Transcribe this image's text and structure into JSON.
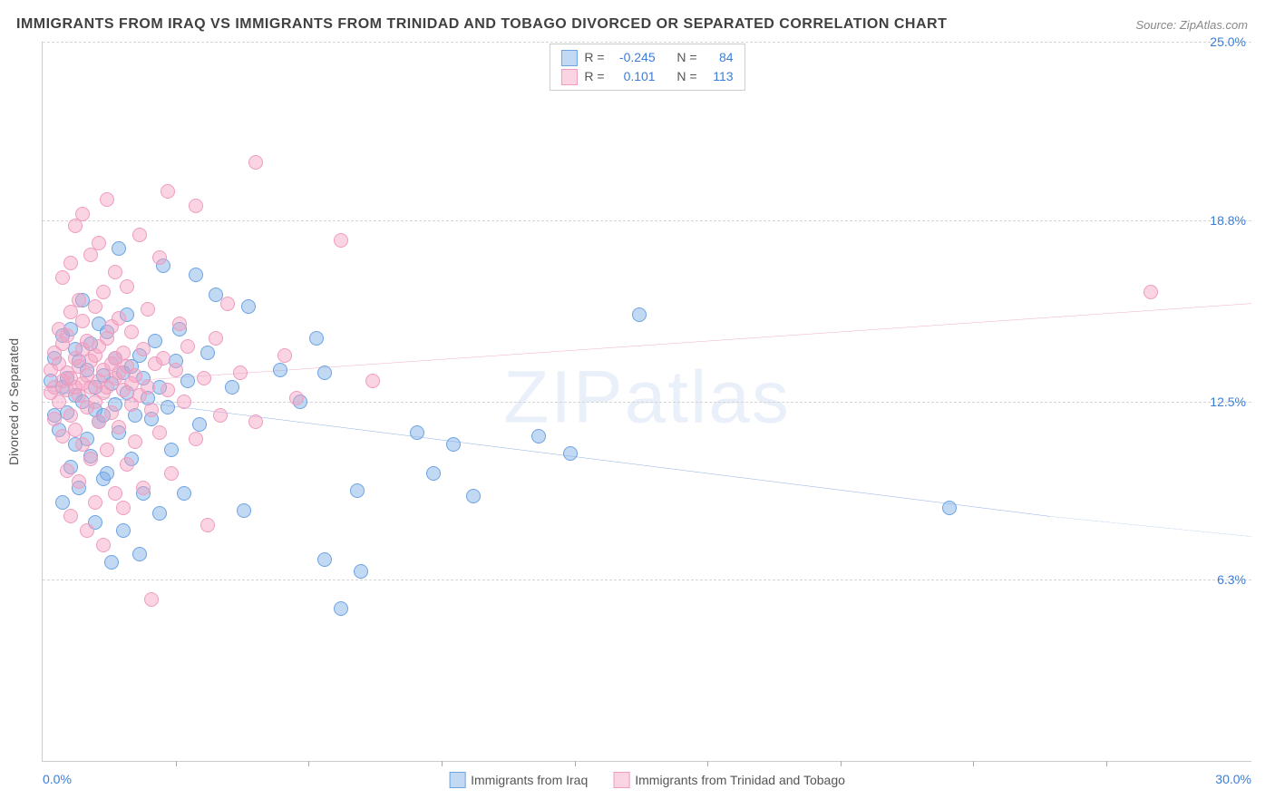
{
  "title": "IMMIGRANTS FROM IRAQ VS IMMIGRANTS FROM TRINIDAD AND TOBAGO DIVORCED OR SEPARATED CORRELATION CHART",
  "source": "Source: ZipAtlas.com",
  "watermark": "ZIPatlas",
  "chart": {
    "type": "scatter",
    "xlim": [
      0,
      30
    ],
    "ylim": [
      0,
      25
    ],
    "x_min_label": "0.0%",
    "x_max_label": "30.0%",
    "y_ticks": [
      {
        "v": 6.3,
        "label": "6.3%"
      },
      {
        "v": 12.5,
        "label": "12.5%"
      },
      {
        "v": 18.8,
        "label": "18.8%"
      },
      {
        "v": 25.0,
        "label": "25.0%"
      }
    ],
    "x_tick_positions": [
      3.3,
      6.6,
      9.9,
      13.2,
      16.5,
      19.8,
      23.1,
      26.4
    ],
    "y_axis_label": "Divorced or Separated",
    "grid_color": "#d5d5d5",
    "background_color": "#ffffff",
    "axis_label_color": "#3b7dd8",
    "marker_radius": 8,
    "series": [
      {
        "name": "Immigrants from Iraq",
        "fill": "rgba(120,170,230,0.45)",
        "stroke": "#6da3e0",
        "line_color": "#2f6fd0",
        "R": "-0.245",
        "N": "84",
        "trend": {
          "x1": 0,
          "y1": 12.9,
          "x2": 25.0,
          "y2": 8.5,
          "dash_to_x": 30.0,
          "dash_to_y": 7.8
        },
        "points": [
          [
            0.2,
            13.2
          ],
          [
            0.3,
            12.0
          ],
          [
            0.3,
            14.0
          ],
          [
            0.4,
            11.5
          ],
          [
            0.5,
            13.0
          ],
          [
            0.5,
            14.8
          ],
          [
            0.5,
            9.0
          ],
          [
            0.6,
            13.3
          ],
          [
            0.6,
            12.1
          ],
          [
            0.7,
            10.2
          ],
          [
            0.7,
            15.0
          ],
          [
            0.8,
            12.7
          ],
          [
            0.8,
            11.0
          ],
          [
            0.8,
            14.3
          ],
          [
            0.9,
            13.9
          ],
          [
            0.9,
            9.5
          ],
          [
            1.0,
            12.5
          ],
          [
            1.0,
            16.0
          ],
          [
            1.1,
            11.2
          ],
          [
            1.1,
            13.6
          ],
          [
            1.2,
            14.5
          ],
          [
            1.2,
            10.6
          ],
          [
            1.3,
            12.2
          ],
          [
            1.3,
            13.0
          ],
          [
            1.3,
            8.3
          ],
          [
            1.4,
            15.2
          ],
          [
            1.4,
            11.8
          ],
          [
            1.5,
            13.4
          ],
          [
            1.5,
            9.8
          ],
          [
            1.5,
            12.0
          ],
          [
            1.6,
            14.9
          ],
          [
            1.6,
            10.0
          ],
          [
            1.7,
            6.9
          ],
          [
            1.7,
            13.1
          ],
          [
            1.8,
            12.4
          ],
          [
            1.8,
            14.0
          ],
          [
            1.9,
            11.4
          ],
          [
            1.9,
            17.8
          ],
          [
            2.0,
            13.5
          ],
          [
            2.0,
            8.0
          ],
          [
            2.1,
            12.8
          ],
          [
            2.1,
            15.5
          ],
          [
            2.2,
            10.5
          ],
          [
            2.2,
            13.7
          ],
          [
            2.3,
            12.0
          ],
          [
            2.4,
            14.1
          ],
          [
            2.4,
            7.2
          ],
          [
            2.5,
            13.3
          ],
          [
            2.5,
            9.3
          ],
          [
            2.6,
            12.6
          ],
          [
            2.7,
            11.9
          ],
          [
            2.8,
            14.6
          ],
          [
            2.9,
            8.6
          ],
          [
            2.9,
            13.0
          ],
          [
            3.0,
            17.2
          ],
          [
            3.1,
            12.3
          ],
          [
            3.2,
            10.8
          ],
          [
            3.3,
            13.9
          ],
          [
            3.4,
            15.0
          ],
          [
            3.5,
            9.3
          ],
          [
            3.6,
            13.2
          ],
          [
            3.8,
            16.9
          ],
          [
            3.9,
            11.7
          ],
          [
            4.1,
            14.2
          ],
          [
            4.3,
            16.2
          ],
          [
            4.7,
            13.0
          ],
          [
            5.0,
            8.7
          ],
          [
            5.1,
            15.8
          ],
          [
            5.9,
            13.6
          ],
          [
            6.4,
            12.5
          ],
          [
            6.8,
            14.7
          ],
          [
            7.0,
            7.0
          ],
          [
            7.0,
            13.5
          ],
          [
            7.4,
            5.3
          ],
          [
            7.8,
            9.4
          ],
          [
            7.9,
            6.6
          ],
          [
            9.3,
            11.4
          ],
          [
            9.7,
            10.0
          ],
          [
            10.2,
            11.0
          ],
          [
            10.7,
            9.2
          ],
          [
            12.3,
            11.3
          ],
          [
            13.1,
            10.7
          ],
          [
            14.8,
            15.5
          ],
          [
            22.5,
            8.8
          ]
        ]
      },
      {
        "name": "Immigrants from Trinidad and Tobago",
        "fill": "rgba(245,160,190,0.45)",
        "stroke": "#ef9cc0",
        "line_color": "#e86aa0",
        "R": "0.101",
        "N": "113",
        "trend": {
          "x1": 0,
          "y1": 13.0,
          "x2": 30.0,
          "y2": 15.9
        },
        "points": [
          [
            0.2,
            12.8
          ],
          [
            0.2,
            13.6
          ],
          [
            0.3,
            13.0
          ],
          [
            0.3,
            11.9
          ],
          [
            0.3,
            14.2
          ],
          [
            0.4,
            12.5
          ],
          [
            0.4,
            13.8
          ],
          [
            0.4,
            15.0
          ],
          [
            0.5,
            11.3
          ],
          [
            0.5,
            13.2
          ],
          [
            0.5,
            14.5
          ],
          [
            0.5,
            16.8
          ],
          [
            0.6,
            10.1
          ],
          [
            0.6,
            12.9
          ],
          [
            0.6,
            13.5
          ],
          [
            0.6,
            14.8
          ],
          [
            0.7,
            8.5
          ],
          [
            0.7,
            12.0
          ],
          [
            0.7,
            13.3
          ],
          [
            0.7,
            15.6
          ],
          [
            0.7,
            17.3
          ],
          [
            0.8,
            11.5
          ],
          [
            0.8,
            13.0
          ],
          [
            0.8,
            14.0
          ],
          [
            0.8,
            18.6
          ],
          [
            0.9,
            9.7
          ],
          [
            0.9,
            12.7
          ],
          [
            0.9,
            13.7
          ],
          [
            0.9,
            16.0
          ],
          [
            1.0,
            11.0
          ],
          [
            1.0,
            13.1
          ],
          [
            1.0,
            14.3
          ],
          [
            1.0,
            15.3
          ],
          [
            1.0,
            19.0
          ],
          [
            1.1,
            8.0
          ],
          [
            1.1,
            12.3
          ],
          [
            1.1,
            13.4
          ],
          [
            1.1,
            14.6
          ],
          [
            1.2,
            10.5
          ],
          [
            1.2,
            13.0
          ],
          [
            1.2,
            13.9
          ],
          [
            1.2,
            17.6
          ],
          [
            1.3,
            9.0
          ],
          [
            1.3,
            12.5
          ],
          [
            1.3,
            14.1
          ],
          [
            1.3,
            15.8
          ],
          [
            1.4,
            11.8
          ],
          [
            1.4,
            13.2
          ],
          [
            1.4,
            14.4
          ],
          [
            1.4,
            18.0
          ],
          [
            1.5,
            7.5
          ],
          [
            1.5,
            12.8
          ],
          [
            1.5,
            13.6
          ],
          [
            1.5,
            16.3
          ],
          [
            1.6,
            10.8
          ],
          [
            1.6,
            13.0
          ],
          [
            1.6,
            14.7
          ],
          [
            1.6,
            19.5
          ],
          [
            1.7,
            12.1
          ],
          [
            1.7,
            13.8
          ],
          [
            1.7,
            15.1
          ],
          [
            1.8,
            9.3
          ],
          [
            1.8,
            13.3
          ],
          [
            1.8,
            14.0
          ],
          [
            1.8,
            17.0
          ],
          [
            1.9,
            11.6
          ],
          [
            1.9,
            13.5
          ],
          [
            1.9,
            15.4
          ],
          [
            2.0,
            8.8
          ],
          [
            2.0,
            12.9
          ],
          [
            2.0,
            14.2
          ],
          [
            2.1,
            10.3
          ],
          [
            2.1,
            13.7
          ],
          [
            2.1,
            16.5
          ],
          [
            2.2,
            12.4
          ],
          [
            2.2,
            13.1
          ],
          [
            2.2,
            14.9
          ],
          [
            2.3,
            11.1
          ],
          [
            2.3,
            13.4
          ],
          [
            2.4,
            18.3
          ],
          [
            2.4,
            12.7
          ],
          [
            2.5,
            9.5
          ],
          [
            2.5,
            14.3
          ],
          [
            2.6,
            13.0
          ],
          [
            2.6,
            15.7
          ],
          [
            2.7,
            5.6
          ],
          [
            2.7,
            12.2
          ],
          [
            2.8,
            13.8
          ],
          [
            2.9,
            17.5
          ],
          [
            2.9,
            11.4
          ],
          [
            3.0,
            14.0
          ],
          [
            3.1,
            12.9
          ],
          [
            3.1,
            19.8
          ],
          [
            3.2,
            10.0
          ],
          [
            3.3,
            13.6
          ],
          [
            3.4,
            15.2
          ],
          [
            3.5,
            12.5
          ],
          [
            3.6,
            14.4
          ],
          [
            3.8,
            11.2
          ],
          [
            3.8,
            19.3
          ],
          [
            4.0,
            13.3
          ],
          [
            4.1,
            8.2
          ],
          [
            4.3,
            14.7
          ],
          [
            4.4,
            12.0
          ],
          [
            4.6,
            15.9
          ],
          [
            4.9,
            13.5
          ],
          [
            5.3,
            11.8
          ],
          [
            5.3,
            20.8
          ],
          [
            6.0,
            14.1
          ],
          [
            6.3,
            12.6
          ],
          [
            7.4,
            18.1
          ],
          [
            8.2,
            13.2
          ],
          [
            27.5,
            16.3
          ]
        ]
      }
    ]
  }
}
